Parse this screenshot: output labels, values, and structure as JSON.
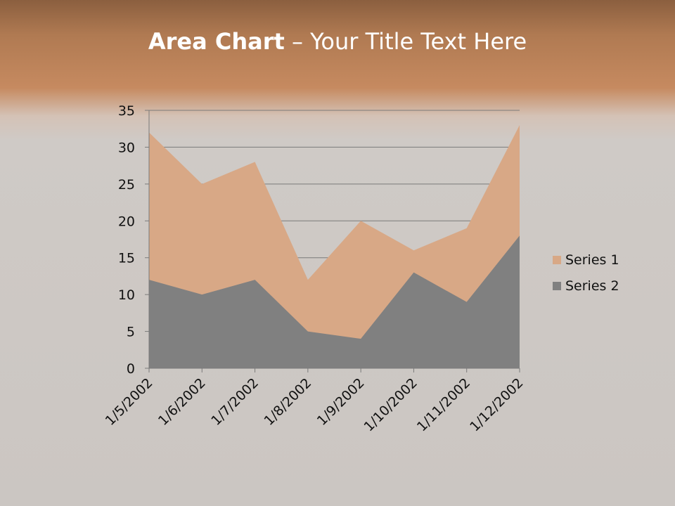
{
  "title": {
    "bold": "Area Chart",
    "rest": " – Your Title Text Here"
  },
  "chart_data": {
    "type": "area",
    "title": "Area Chart – Your Title Text Here",
    "categories": [
      "1/5/2002",
      "1/6/2002",
      "1/7/2002",
      "1/8/2002",
      "1/9/2002",
      "1/10/2002",
      "1/11/2002",
      "1/12/2002"
    ],
    "series": [
      {
        "name": "Series 1",
        "values": [
          32,
          25,
          28,
          12,
          20,
          16,
          19,
          33
        ],
        "color": "#d8a886"
      },
      {
        "name": "Series 2",
        "values": [
          12,
          10,
          12,
          5,
          4,
          13,
          9,
          18
        ],
        "color": "#808080"
      }
    ],
    "ylim": [
      0,
      35
    ],
    "yticks": [
      0,
      5,
      10,
      15,
      20,
      25,
      30,
      35
    ],
    "grid": true,
    "legend": "right"
  }
}
